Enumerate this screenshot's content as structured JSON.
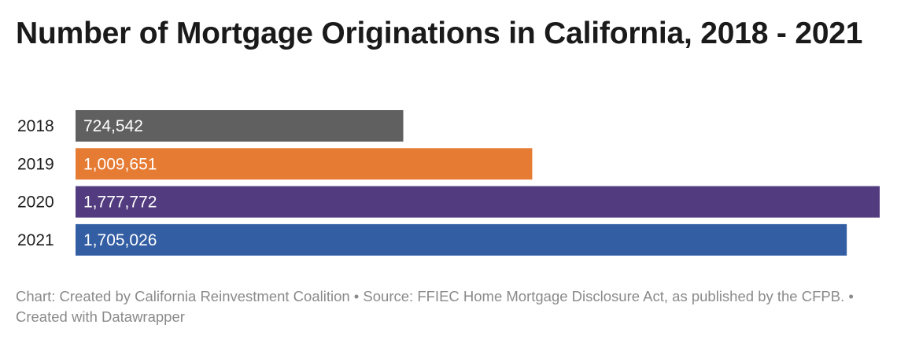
{
  "title": "Number of Mortgage Originations in California, 2018 - 2021",
  "footer": {
    "text": "Chart: Created by California Reinvestment Coalition • Source: FFIEC Home Mortgage Disclosure Act, as published by the CFPB. • Created with Datawrapper"
  },
  "chart_data": {
    "type": "bar",
    "orientation": "horizontal",
    "title": "Number of Mortgage Originations in California, 2018 - 2021",
    "xlabel": "",
    "ylabel": "",
    "categories": [
      "2018",
      "2019",
      "2020",
      "2021"
    ],
    "values": [
      724542,
      1009651,
      1777772,
      1705026
    ],
    "value_labels": [
      "724,542",
      "1,009,651",
      "1,777,772",
      "1,705,026"
    ],
    "colors": [
      "#606060",
      "#e67b33",
      "#523c7f",
      "#335ea3"
    ],
    "xlim": [
      0,
      1777772
    ],
    "grid": false,
    "legend": "none"
  }
}
